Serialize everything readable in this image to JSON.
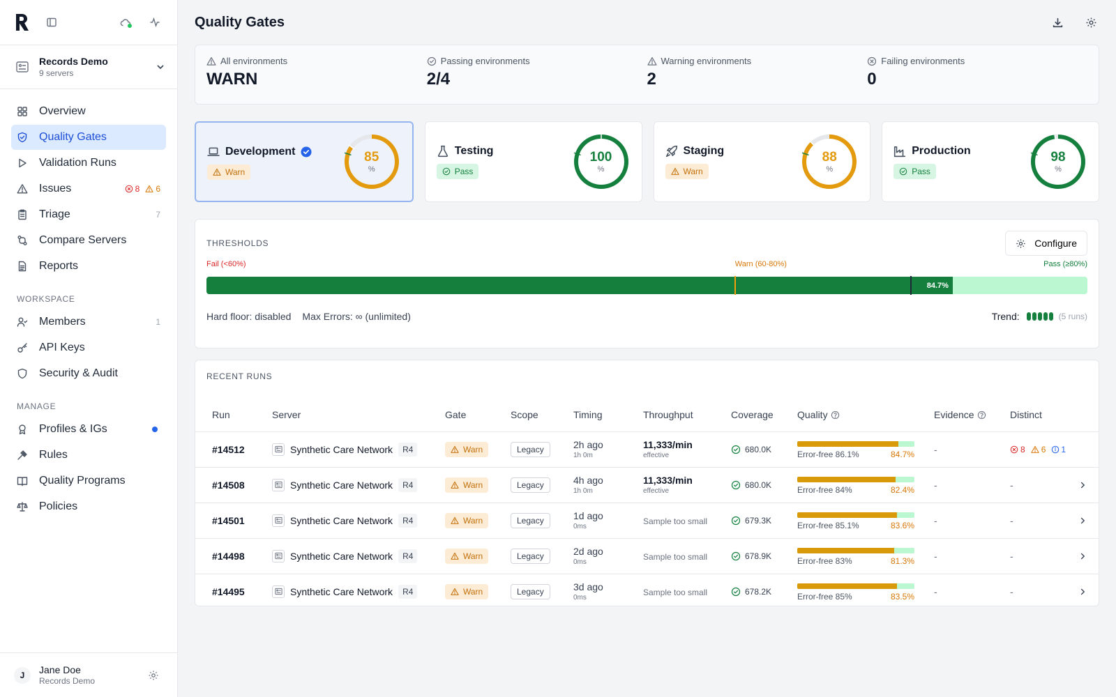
{
  "org": {
    "name": "Records Demo",
    "sub": "9 servers"
  },
  "nav": [
    {
      "label": "Overview",
      "icon": "grid-icon",
      "active": false
    },
    {
      "label": "Quality Gates",
      "icon": "shield-icon",
      "active": true
    },
    {
      "label": "Validation Runs",
      "icon": "play-icon",
      "active": false
    },
    {
      "label": "Issues",
      "icon": "alert-icon",
      "active": false,
      "err": "8",
      "warn": "6"
    },
    {
      "label": "Triage",
      "icon": "clipboard-icon",
      "active": false,
      "count": "7"
    },
    {
      "label": "Compare Servers",
      "icon": "compare-icon",
      "active": false
    },
    {
      "label": "Reports",
      "icon": "report-icon",
      "active": false
    }
  ],
  "workspace": {
    "label": "WORKSPACE",
    "items": [
      {
        "label": "Members",
        "icon": "members-icon",
        "count": "1"
      },
      {
        "label": "API Keys",
        "icon": "key-icon"
      },
      {
        "label": "Security & Audit",
        "icon": "shield-outline-icon"
      }
    ]
  },
  "manage": {
    "label": "MANAGE",
    "items": [
      {
        "label": "Profiles & IGs",
        "icon": "badge-icon",
        "dot": true
      },
      {
        "label": "Rules",
        "icon": "gavel-icon"
      },
      {
        "label": "Quality Programs",
        "icon": "book-icon"
      },
      {
        "label": "Policies",
        "icon": "scale-icon"
      }
    ]
  },
  "user": {
    "initial": "J",
    "name": "Jane Doe",
    "sub": "Records Demo"
  },
  "page": {
    "title": "Quality Gates"
  },
  "summary": [
    {
      "label": "All environments",
      "value": "WARN",
      "icon": "alert-icon"
    },
    {
      "label": "Passing environments",
      "value": "2/4",
      "icon": "check-circle-icon"
    },
    {
      "label": "Warning environments",
      "value": "2",
      "icon": "alert-icon"
    },
    {
      "label": "Failing environments",
      "value": "0",
      "icon": "x-circle-icon"
    }
  ],
  "environments": [
    {
      "name": "Development",
      "status": "Warn",
      "score": 85,
      "unit": "%",
      "color": "#e39a0c",
      "selected": true,
      "verified": true,
      "icon": "laptop-icon"
    },
    {
      "name": "Testing",
      "status": "Pass",
      "score": 100,
      "unit": "%",
      "color": "#15803d",
      "selected": false,
      "verified": false,
      "icon": "flask-icon"
    },
    {
      "name": "Staging",
      "status": "Warn",
      "score": 88,
      "unit": "%",
      "color": "#e39a0c",
      "selected": false,
      "verified": false,
      "icon": "rocket-icon"
    },
    {
      "name": "Production",
      "status": "Pass",
      "score": 98,
      "unit": "%",
      "color": "#15803d",
      "selected": false,
      "verified": false,
      "icon": "factory-icon"
    }
  ],
  "thresholds": {
    "title": "THRESHOLDS",
    "configure_label": "Configure",
    "fail_label": "Fail (<60%)",
    "warn_label": "Warn (60-80%)",
    "pass_label": "Pass (≥80%)",
    "current": 84.7,
    "current_label": "84.7%",
    "warn_at": 60,
    "pass_at": 80,
    "hard_floor": "Hard floor: disabled",
    "max_errors": "Max Errors: ∞ (unlimited)",
    "trend_label": "Trend:",
    "trend_count": 5,
    "trend_runs": "(5 runs)"
  },
  "runs": {
    "title": "RECENT RUNS",
    "columns": [
      "Run",
      "Server",
      "Gate",
      "Scope",
      "Timing",
      "Throughput",
      "Coverage",
      "Quality",
      "Evidence",
      "Distinct"
    ],
    "rows": [
      {
        "run": "#14512",
        "server": "Synthetic Care Network",
        "version": "R4",
        "gate": "Warn",
        "scope": "Legacy",
        "time": "2h ago",
        "duration": "1h 0m",
        "throughput": "11,333/min",
        "throughput_sub": "effective",
        "coverage": "680.0K",
        "error_free": "Error-free 86.1%",
        "ef_value": 86.1,
        "quality": "84.7%",
        "quality_value": 84.7,
        "evidence": "-",
        "distinct": {
          "err": "8",
          "warn": "6",
          "info": "1"
        }
      },
      {
        "run": "#14508",
        "server": "Synthetic Care Network",
        "version": "R4",
        "gate": "Warn",
        "scope": "Legacy",
        "time": "4h ago",
        "duration": "1h 0m",
        "throughput": "11,333/min",
        "throughput_sub": "effective",
        "coverage": "680.0K",
        "error_free": "Error-free 84%",
        "ef_value": 84,
        "quality": "82.4%",
        "quality_value": 82.4,
        "evidence": "-",
        "distinct_text": "-"
      },
      {
        "run": "#14501",
        "server": "Synthetic Care Network",
        "version": "R4",
        "gate": "Warn",
        "scope": "Legacy",
        "time": "1d ago",
        "duration": "0ms",
        "throughput_note": "Sample too small",
        "coverage": "679.3K",
        "error_free": "Error-free 85.1%",
        "ef_value": 85.1,
        "quality": "83.6%",
        "quality_value": 83.6,
        "evidence": "-",
        "distinct_text": "-"
      },
      {
        "run": "#14498",
        "server": "Synthetic Care Network",
        "version": "R4",
        "gate": "Warn",
        "scope": "Legacy",
        "time": "2d ago",
        "duration": "0ms",
        "throughput_note": "Sample too small",
        "coverage": "678.9K",
        "error_free": "Error-free 83%",
        "ef_value": 83,
        "quality": "81.3%",
        "quality_value": 81.3,
        "evidence": "-",
        "distinct_text": "-"
      },
      {
        "run": "#14495",
        "server": "Synthetic Care Network",
        "version": "R4",
        "gate": "Warn",
        "scope": "Legacy",
        "time": "3d ago",
        "duration": "0ms",
        "throughput_note": "Sample too small",
        "coverage": "678.2K",
        "error_free": "Error-free 85%",
        "ef_value": 85,
        "quality": "83.5%",
        "quality_value": 83.5,
        "evidence": "-",
        "distinct_text": "-"
      }
    ]
  }
}
